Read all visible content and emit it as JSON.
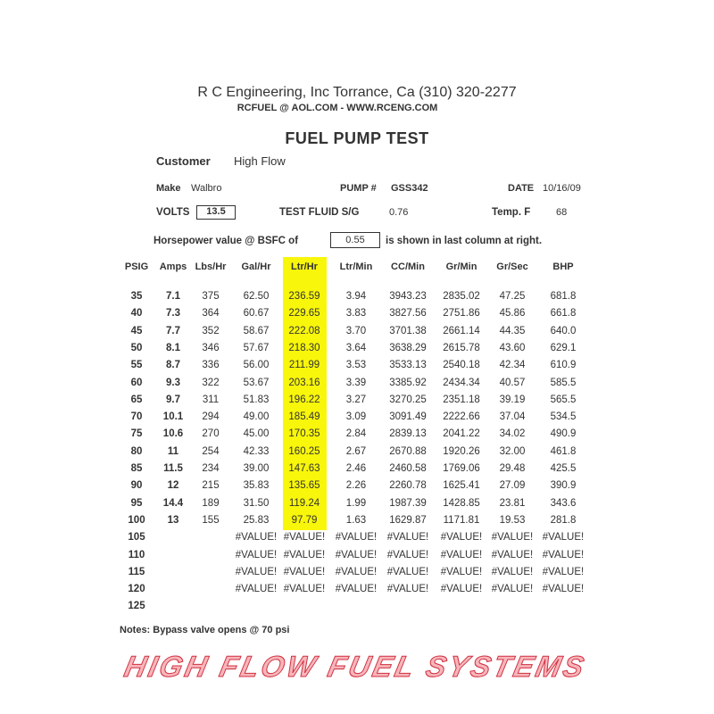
{
  "company": {
    "line1": "R C Engineering, Inc  Torrance,  Ca  (310) 320-2277",
    "line2": "RCFUEL @ AOL.COM -  WWW.RCENG.COM"
  },
  "title": "FUEL PUMP TEST",
  "info": {
    "customer_label": "Customer",
    "customer": "High Flow",
    "make_label": "Make",
    "make": "Walbro",
    "pump_label": "PUMP #",
    "pump": "GSS342",
    "date_label": "DATE",
    "date": "10/16/09",
    "volts_label": "VOLTS",
    "volts": "13.5",
    "fluid_label": "TEST FLUID  S/G",
    "fluid": "0.76",
    "temp_label": "Temp.  F",
    "temp": "68",
    "hp_label": "Horsepower value @  BSFC of",
    "bsfc": "0.55",
    "hp_suffix": "is shown in last column at right."
  },
  "highlight_color": "#f8f60a",
  "watermark": "HIGH FLOW FUEL SYSTEMS",
  "table": {
    "columns": [
      "PSIG",
      "Amps",
      "Lbs/Hr",
      "Gal/Hr",
      "Ltr/Hr",
      "Ltr/Min",
      "CC/Min",
      "Gr/Min",
      "Gr/Sec",
      "BHP"
    ],
    "rows": [
      [
        "35",
        "7.1",
        "375",
        "62.50",
        "236.59",
        "3.94",
        "3943.23",
        "2835.02",
        "47.25",
        "681.8"
      ],
      [
        "40",
        "7.3",
        "364",
        "60.67",
        "229.65",
        "3.83",
        "3827.56",
        "2751.86",
        "45.86",
        "661.8"
      ],
      [
        "45",
        "7.7",
        "352",
        "58.67",
        "222.08",
        "3.70",
        "3701.38",
        "2661.14",
        "44.35",
        "640.0"
      ],
      [
        "50",
        "8.1",
        "346",
        "57.67",
        "218.30",
        "3.64",
        "3638.29",
        "2615.78",
        "43.60",
        "629.1"
      ],
      [
        "55",
        "8.7",
        "336",
        "56.00",
        "211.99",
        "3.53",
        "3533.13",
        "2540.18",
        "42.34",
        "610.9"
      ],
      [
        "60",
        "9.3",
        "322",
        "53.67",
        "203.16",
        "3.39",
        "3385.92",
        "2434.34",
        "40.57",
        "585.5"
      ],
      [
        "65",
        "9.7",
        "311",
        "51.83",
        "196.22",
        "3.27",
        "3270.25",
        "2351.18",
        "39.19",
        "565.5"
      ],
      [
        "70",
        "10.1",
        "294",
        "49.00",
        "185.49",
        "3.09",
        "3091.49",
        "2222.66",
        "37.04",
        "534.5"
      ],
      [
        "75",
        "10.6",
        "270",
        "45.00",
        "170.35",
        "2.84",
        "2839.13",
        "2041.22",
        "34.02",
        "490.9"
      ],
      [
        "80",
        "11",
        "254",
        "42.33",
        "160.25",
        "2.67",
        "2670.88",
        "1920.26",
        "32.00",
        "461.8"
      ],
      [
        "85",
        "11.5",
        "234",
        "39.00",
        "147.63",
        "2.46",
        "2460.58",
        "1769.06",
        "29.48",
        "425.5"
      ],
      [
        "90",
        "12",
        "215",
        "35.83",
        "135.65",
        "2.26",
        "2260.78",
        "1625.41",
        "27.09",
        "390.9"
      ],
      [
        "95",
        "14.4",
        "189",
        "31.50",
        "119.24",
        "1.99",
        "1987.39",
        "1428.85",
        "23.81",
        "343.6"
      ],
      [
        "100",
        "13",
        "155",
        "25.83",
        "97.79",
        "1.63",
        "1629.87",
        "1171.81",
        "19.53",
        "281.8"
      ],
      [
        "105",
        "",
        "",
        "#VALUE!",
        "#VALUE!",
        "#VALUE!",
        "#VALUE!",
        "#VALUE!",
        "#VALUE!",
        "#VALUE!"
      ],
      [
        "110",
        "",
        "",
        "#VALUE!",
        "#VALUE!",
        "#VALUE!",
        "#VALUE!",
        "#VALUE!",
        "#VALUE!",
        "#VALUE!"
      ],
      [
        "115",
        "",
        "",
        "#VALUE!",
        "#VALUE!",
        "#VALUE!",
        "#VALUE!",
        "#VALUE!",
        "#VALUE!",
        "#VALUE!"
      ],
      [
        "120",
        "",
        "",
        "#VALUE!",
        "#VALUE!",
        "#VALUE!",
        "#VALUE!",
        "#VALUE!",
        "#VALUE!",
        "#VALUE!"
      ],
      [
        "125",
        "",
        "",
        "",
        "",
        "",
        "",
        "",
        "",
        ""
      ]
    ]
  },
  "notes": "Notes:  Bypass valve opens @ 70 psi"
}
